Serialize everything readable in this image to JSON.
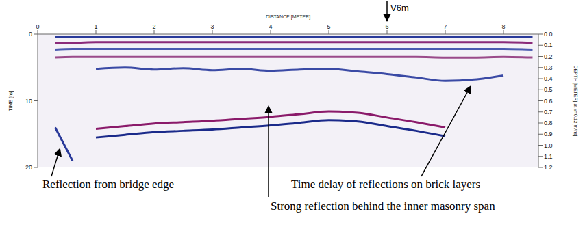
{
  "chart_data": {
    "type": "line",
    "x_label": "DISTANCE [METER]",
    "y_label": "TIME [ns]",
    "y2_label": "DEPTH [METER] at v=0.12[m/ns]",
    "x": [
      0.3,
      0.6,
      1,
      1.5,
      2,
      2.5,
      3,
      3.5,
      4,
      4.5,
      5,
      5.5,
      6,
      6.5,
      7,
      7.5,
      8,
      8.5
    ],
    "xlim": [
      0,
      8.6
    ],
    "xticks": [
      0,
      1,
      2,
      3,
      4,
      5,
      6,
      7,
      8
    ],
    "ylim": [
      0,
      20
    ],
    "yticks": [
      0,
      10,
      20
    ],
    "y2lim": [
      0,
      1.2
    ],
    "y2ticks": [
      {
        "value": 0,
        "label": "0.0"
      },
      0.1,
      0.2,
      0.3,
      0.4,
      0.5,
      0.6,
      0.7,
      0.8,
      0.9,
      {
        "value": 1,
        "label": "1.0"
      },
      1.1,
      1.2
    ],
    "grid": false,
    "series": [
      {
        "color": "#2a3a9a",
        "values": [
          0.4,
          0.4,
          0.4,
          0.4,
          0.4,
          0.4,
          0.4,
          0.4,
          0.4,
          0.4,
          0.4,
          0.4,
          0.4,
          0.4,
          0.4,
          0.4,
          0.4,
          0.4
        ]
      },
      {
        "color": "#8a2a7a",
        "values": [
          1.3,
          1.3,
          1.2,
          1.2,
          1.2,
          1.2,
          1.2,
          1.2,
          1.2,
          1.2,
          1.2,
          1.2,
          1.2,
          1.2,
          1.2,
          1.2,
          1.2,
          1.3
        ]
      },
      {
        "color": "#4a5ab0",
        "values": [
          2.3,
          2.2,
          2.2,
          2.2,
          2.2,
          2.2,
          2.2,
          2.2,
          2.2,
          2.2,
          2.2,
          2.2,
          2.2,
          2.2,
          2.2,
          2.2,
          2.2,
          2.3
        ]
      },
      {
        "color": "#9a4a8a",
        "values": [
          3.5,
          3.4,
          3.4,
          3.4,
          3.4,
          3.4,
          3.4,
          3.4,
          3.4,
          3.4,
          3.4,
          3.4,
          3.4,
          3.4,
          3.5,
          3.5,
          3.4,
          3.5
        ]
      },
      {
        "color": "#3a4aa5",
        "values": [
          null,
          null,
          5.2,
          5.0,
          5.3,
          5.1,
          5.4,
          5.2,
          5.5,
          5.3,
          5.2,
          5.6,
          6.0,
          6.5,
          7.0,
          6.8,
          6.2,
          null
        ]
      },
      {
        "color": "#8a1a6a",
        "values": [
          null,
          null,
          14.2,
          13.8,
          13.4,
          13.2,
          13.0,
          12.7,
          12.4,
          12.0,
          11.6,
          11.8,
          12.5,
          13.2,
          14.0,
          null,
          null,
          null
        ]
      },
      {
        "color": "#1a2a8a",
        "values": [
          null,
          null,
          15.5,
          15.1,
          14.7,
          14.5,
          14.3,
          14.0,
          13.7,
          13.3,
          12.9,
          13.1,
          13.8,
          14.5,
          15.3,
          null,
          null,
          null
        ]
      },
      {
        "color": "#2a3a9a",
        "values": [
          14,
          19,
          null,
          null,
          null,
          null,
          null,
          null,
          null,
          null,
          null,
          null,
          null,
          null,
          null,
          null,
          null,
          null
        ]
      }
    ],
    "annotations": [
      {
        "text": "V6m",
        "x": 6
      },
      {
        "text": "Reflection from bridge edge"
      },
      {
        "text": "Time delay of reflections on brick layers"
      },
      {
        "text": "Strong reflection behind the inner masonry span"
      }
    ]
  }
}
